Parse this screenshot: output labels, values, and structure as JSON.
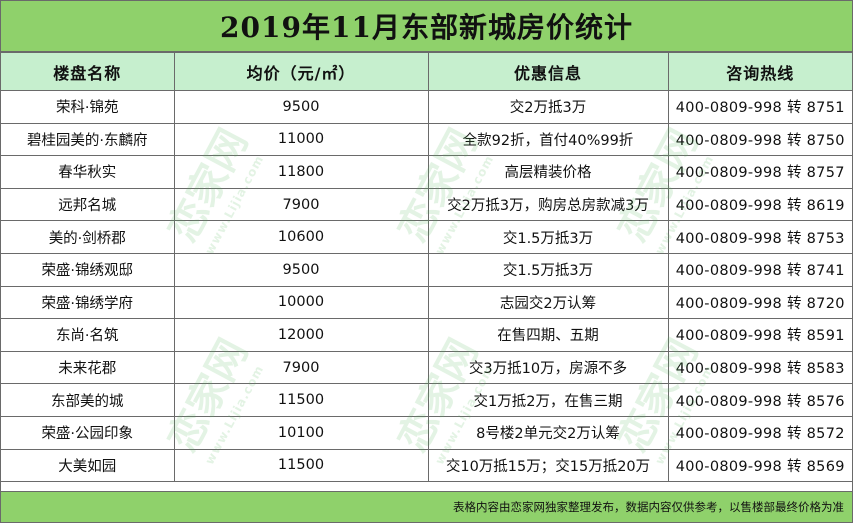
{
  "title": "2019年11月东部新城房价统计",
  "headers": [
    "楼盘名称",
    "均价（元/㎡）",
    "优惠信息",
    "咨询热线"
  ],
  "rows": [
    {
      "name": "荣科·锦苑",
      "price": "9500",
      "offer": "交2万抵3万",
      "hotline": "400-0809-998 转 8751"
    },
    {
      "name": "碧桂园美的·东麟府",
      "price": "11000",
      "offer": "全款92折，首付40%99折",
      "hotline": "400-0809-998 转 8750"
    },
    {
      "name": "春华秋实",
      "price": "11800",
      "offer": "高层精装价格",
      "hotline": "400-0809-998 转 8757"
    },
    {
      "name": "远邦名城",
      "price": "7900",
      "offer": "交2万抵3万，购房总房款减3万",
      "hotline": "400-0809-998 转 8619"
    },
    {
      "name": "美的·剑桥郡",
      "price": "10600",
      "offer": "交1.5万抵3万",
      "hotline": "400-0809-998 转 8753"
    },
    {
      "name": "荣盛·锦绣观邸",
      "price": "9500",
      "offer": "交1.5万抵3万",
      "hotline": "400-0809-998 转 8741"
    },
    {
      "name": "荣盛·锦绣学府",
      "price": "10000",
      "offer": "志园交2万认筹",
      "hotline": "400-0809-998 转 8720"
    },
    {
      "name": "东尚·名筑",
      "price": "12000",
      "offer": "在售四期、五期",
      "hotline": "400-0809-998 转 8591"
    },
    {
      "name": "未来花郡",
      "price": "7900",
      "offer": "交3万抵10万，房源不多",
      "hotline": "400-0809-998 转 8583"
    },
    {
      "name": "东部美的城",
      "price": "11500",
      "offer": "交1万抵2万，在售三期",
      "hotline": "400-0809-998 转 8576"
    },
    {
      "name": "荣盛·公园印象",
      "price": "10100",
      "offer": "8号楼2单元交2万认筹",
      "hotline": "400-0809-998 转 8572"
    },
    {
      "name": "大美如园",
      "price": "11500",
      "offer": "交10万抵15万；交15万抵20万",
      "hotline": "400-0809-998 转 8569"
    }
  ],
  "footer": "表格内容由恋家网独家整理发布，数据内容仅供参考，以售楼部最终价格为准",
  "watermark": {
    "brand": "恋家网",
    "url": "www.Lijia.com"
  },
  "colors": {
    "title_bg": "#8fd16b",
    "header_bg": "#c6efce",
    "footer_bg": "#8fd16b",
    "border": "#6a6a6a"
  }
}
